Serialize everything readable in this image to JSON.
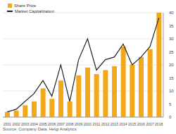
{
  "chart_data": {
    "type": "bar",
    "categories": [
      "2001",
      "2002",
      "2003",
      "2004",
      "2005",
      "2006",
      "2007",
      "2008",
      "2009",
      "2010",
      "2011",
      "2012",
      "2013",
      "2014",
      "2015",
      "2016",
      "2017",
      "2018"
    ],
    "series": [
      {
        "name": "Share Price",
        "type": "bar",
        "color": "#f2a81d",
        "values": [
          2,
          2.5,
          4.5,
          6,
          11,
          7,
          14,
          6,
          16,
          19,
          16.5,
          18,
          19.5,
          27,
          20,
          23,
          26,
          40
        ]
      },
      {
        "name": "Market Capitalization",
        "type": "line",
        "color": "#222222",
        "values": [
          2,
          3,
          6,
          9,
          14,
          8,
          20,
          6,
          22,
          30,
          18,
          22,
          23,
          28,
          20,
          23,
          27,
          38
        ]
      }
    ],
    "ylim": [
      0,
      40
    ],
    "yticks": [
      0,
      5,
      10,
      15,
      20,
      25,
      30,
      35,
      40
    ],
    "grid": true,
    "legend": "top-left",
    "source": "Source: Company Data, Helgi Analytics"
  }
}
